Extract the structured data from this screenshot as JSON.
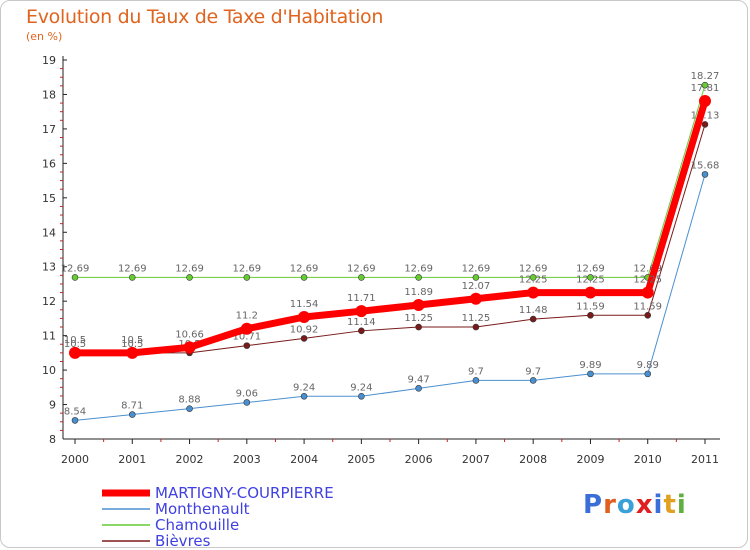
{
  "title": "Evolution du Taux de Taxe d'Habitation",
  "subtitle": "(en %)",
  "brand": {
    "text": "Proxiti",
    "letters": [
      {
        "ch": "P",
        "color": "#3a6fd8"
      },
      {
        "ch": "r",
        "color": "#e06020"
      },
      {
        "ch": "o",
        "color": "#3aa0d8"
      },
      {
        "ch": "x",
        "color": "#e02020"
      },
      {
        "ch": "i",
        "color": "#3a6fd8"
      },
      {
        "ch": "t",
        "color": "#e0a020"
      },
      {
        "ch": "i",
        "color": "#60b040"
      }
    ]
  },
  "chart_data": {
    "type": "line",
    "x": [
      2000,
      2001,
      2002,
      2003,
      2004,
      2005,
      2006,
      2007,
      2008,
      2009,
      2010,
      2011
    ],
    "ylim": [
      8,
      19
    ],
    "yticks": [
      8,
      9,
      10,
      11,
      12,
      13,
      14,
      15,
      16,
      17,
      18,
      19
    ],
    "xlabel": "",
    "ylabel": "",
    "grid": false,
    "legend_position": "bottom-left",
    "series": [
      {
        "name": "Bièvres",
        "color": "#7a1a1a",
        "width": 1,
        "values": [
          10.5,
          10.5,
          10.5,
          10.71,
          10.92,
          11.14,
          11.25,
          11.25,
          11.48,
          11.59,
          11.59,
          17.13
        ],
        "labels": [
          "10.5",
          "10.5",
          "10.5",
          "10.71",
          "10.92",
          "11.14",
          "11.25",
          "11.25",
          "11.48",
          "11.59",
          "11.59",
          "17.13"
        ]
      },
      {
        "name": "Chamouille",
        "color": "#66cc33",
        "width": 1,
        "values": [
          12.69,
          12.69,
          12.69,
          12.69,
          12.69,
          12.69,
          12.69,
          12.69,
          12.69,
          12.69,
          12.69,
          18.27
        ],
        "labels": [
          "12.69",
          "12.69",
          "12.69",
          "12.69",
          "12.69",
          "12.69",
          "12.69",
          "12.69",
          "12.69",
          "12.69",
          "12.69",
          "18.27"
        ]
      },
      {
        "name": "Monthenault",
        "color": "#4a90d0",
        "width": 1,
        "values": [
          8.54,
          8.71,
          8.88,
          9.06,
          9.24,
          9.24,
          9.47,
          9.7,
          9.7,
          9.89,
          9.89,
          15.68
        ],
        "labels": [
          "8.54",
          "8.71",
          "8.88",
          "9.06",
          "9.24",
          "9.24",
          "9.47",
          "9.7",
          "9.7",
          "9.89",
          "9.89",
          "15.68"
        ]
      },
      {
        "name": "MARTIGNY-COURPIERRE",
        "color": "#ff0000",
        "width": 7,
        "values": [
          10.5,
          10.5,
          10.66,
          11.2,
          11.54,
          11.71,
          11.89,
          12.07,
          12.25,
          12.25,
          12.25,
          17.81
        ],
        "labels": [
          "10.5",
          "10.5",
          "10.66",
          "11.2",
          "11.54",
          "11.71",
          "11.89",
          "12.07",
          "12.25",
          "12.25",
          "12.25",
          "17.81"
        ]
      }
    ],
    "legend_order": [
      "MARTIGNY-COURPIERRE",
      "Monthenault",
      "Chamouille",
      "Bièvres"
    ]
  }
}
